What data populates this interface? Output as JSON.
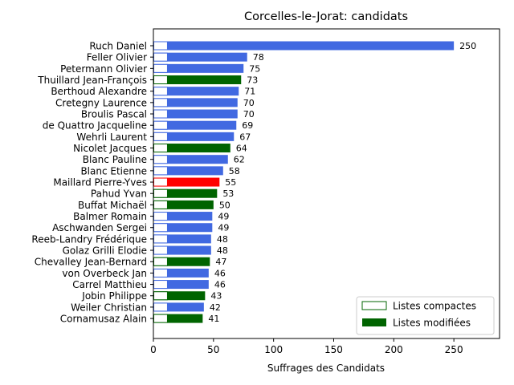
{
  "chart_data": {
    "type": "bar",
    "orientation": "horizontal",
    "title": "Corcelles-le-Jorat: candidats",
    "xlabel": "Suffrages des Candidats",
    "ylabel": "",
    "xlim": [
      0,
      288
    ],
    "xticks": [
      "0",
      "50",
      "100",
      "150",
      "200",
      "250"
    ],
    "xtick_values": [
      0,
      50,
      100,
      150,
      200,
      250
    ],
    "compact_value": 12,
    "legend_position": "lower-right",
    "legend": [
      {
        "label": "Listes compactes",
        "style": "outline",
        "color": "#006400"
      },
      {
        "label": "Listes modifiées",
        "style": "filled",
        "color": "#006400"
      }
    ],
    "colors": {
      "blue": "#4169e1",
      "green": "#006400",
      "red": "#ff0000"
    },
    "bars": [
      {
        "name": "Ruch Daniel",
        "value": 250,
        "label": "250",
        "color": "blue"
      },
      {
        "name": "Feller Olivier",
        "value": 78,
        "label": "78",
        "color": "blue"
      },
      {
        "name": "Petermann Olivier",
        "value": 75,
        "label": "75",
        "color": "blue"
      },
      {
        "name": "Thuillard Jean-François",
        "value": 73,
        "label": "73",
        "color": "green"
      },
      {
        "name": "Berthoud Alexandre",
        "value": 71,
        "label": "71",
        "color": "blue"
      },
      {
        "name": "Cretegny Laurence",
        "value": 70,
        "label": "70",
        "color": "blue"
      },
      {
        "name": "Broulis Pascal",
        "value": 70,
        "label": "70",
        "color": "blue"
      },
      {
        "name": "de Quattro Jacqueline",
        "value": 69,
        "label": "69",
        "color": "blue"
      },
      {
        "name": "Wehrli Laurent",
        "value": 67,
        "label": "67",
        "color": "blue"
      },
      {
        "name": "Nicolet Jacques",
        "value": 64,
        "label": "64",
        "color": "green"
      },
      {
        "name": "Blanc Pauline",
        "value": 62,
        "label": "62",
        "color": "blue"
      },
      {
        "name": "Blanc Etienne",
        "value": 58,
        "label": "58",
        "color": "blue"
      },
      {
        "name": "Maillard Pierre-Yves",
        "value": 55,
        "label": "55",
        "color": "red"
      },
      {
        "name": "Pahud Yvan",
        "value": 53,
        "label": "53",
        "color": "green"
      },
      {
        "name": "Buffat Michaël",
        "value": 50,
        "label": "50",
        "color": "green"
      },
      {
        "name": "Balmer Romain",
        "value": 49,
        "label": "49",
        "color": "blue"
      },
      {
        "name": "Aschwanden Sergei",
        "value": 49,
        "label": "49",
        "color": "blue"
      },
      {
        "name": "Reeb-Landry Frédérique",
        "value": 48,
        "label": "48",
        "color": "blue"
      },
      {
        "name": "Golaz Grilli Elodie",
        "value": 48,
        "label": "48",
        "color": "blue"
      },
      {
        "name": "Chevalley Jean-Bernard",
        "value": 47,
        "label": "47",
        "color": "green"
      },
      {
        "name": "von Overbeck Jan",
        "value": 46,
        "label": "46",
        "color": "blue"
      },
      {
        "name": "Carrel Matthieu",
        "value": 46,
        "label": "46",
        "color": "blue"
      },
      {
        "name": "Jobin Philippe",
        "value": 43,
        "label": "43",
        "color": "green"
      },
      {
        "name": "Weiler Christian",
        "value": 42,
        "label": "42",
        "color": "blue"
      },
      {
        "name": "Cornamusaz Alain",
        "value": 41,
        "label": "41",
        "color": "green"
      }
    ]
  }
}
